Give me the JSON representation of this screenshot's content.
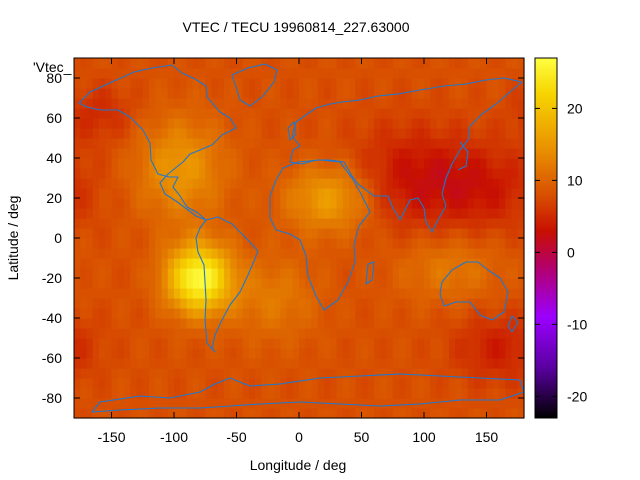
{
  "chart_data": {
    "type": "heatmap",
    "title": "VTEC / TECU 19960814_227.63000",
    "xlabel": "Longitude / deg",
    "ylabel": "Latitude / deg",
    "series_label": "'Vtec_",
    "xlim": [
      -180,
      180
    ],
    "ylim": [
      -90,
      90
    ],
    "x_ticks": [
      -150,
      -100,
      -50,
      0,
      50,
      100,
      150
    ],
    "y_ticks": [
      -80,
      -60,
      -40,
      -20,
      0,
      20,
      40,
      60,
      80
    ],
    "colorbar": {
      "range": [
        -23,
        27
      ],
      "ticks": [
        20,
        10,
        0,
        -10,
        -20
      ],
      "palette": [
        "#000000",
        "#5a00a0",
        "#9b00ff",
        "#b4006a",
        "#c81000",
        "#d85000",
        "#eb9700",
        "#f6d400",
        "#ffff40"
      ],
      "palette_stops": [
        -23,
        -16,
        -9,
        -2,
        3,
        8,
        15,
        22,
        27
      ]
    },
    "field": {
      "background": 8,
      "anomalies": [
        {
          "lon": -80,
          "lat": -20,
          "peak": 27,
          "sx": 18,
          "sy": 12
        },
        {
          "lon": 25,
          "lat": 20,
          "peak": 16,
          "sx": 25,
          "sy": 12
        },
        {
          "lon": -95,
          "lat": 35,
          "peak": 15,
          "sx": 25,
          "sy": 18
        },
        {
          "lon": 120,
          "lat": -15,
          "peak": 12,
          "sx": 30,
          "sy": 12
        },
        {
          "lon": 90,
          "lat": 30,
          "peak": 3,
          "sx": 35,
          "sy": 18
        },
        {
          "lon": 150,
          "lat": 25,
          "peak": 4,
          "sx": 30,
          "sy": 15
        },
        {
          "lon": 160,
          "lat": -55,
          "peak": 4,
          "sx": 25,
          "sy": 12
        },
        {
          "lon": -160,
          "lat": 62,
          "peak": 5,
          "sx": 20,
          "sy": 10
        },
        {
          "lon": -20,
          "lat": -30,
          "peak": 12,
          "sx": 25,
          "sy": 15
        }
      ]
    },
    "coastline_color": "#1f77d0"
  }
}
